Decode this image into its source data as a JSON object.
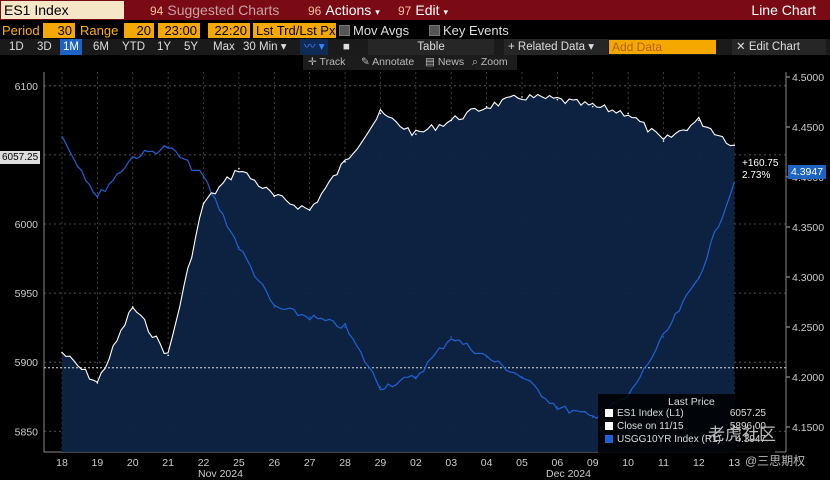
{
  "topbar": {
    "security": "ES1 Index",
    "suggested_num": "94",
    "suggested_label": "Suggested Charts",
    "actions_num": "96",
    "actions_label": "Actions",
    "edit_num": "97",
    "edit_label": "Edit",
    "view_label": "Line Chart"
  },
  "controls": {
    "period_label": "Period",
    "period_value": "30",
    "range_label": "Range",
    "range_value": "20",
    "time_start": "23:00",
    "time_end": "22:20",
    "lst_trd": "Lst Trd/Lst Px",
    "mov_avgs": "Mov Avgs",
    "key_events": "Key Events"
  },
  "tabs": [
    "1D",
    "3D",
    "1M",
    "6M",
    "YTD",
    "1Y",
    "5Y",
    "Max"
  ],
  "selected_tab": "1M",
  "interval": "30 Min",
  "table_label": "Table",
  "related_data": "+ Related Data",
  "add_data_placeholder": "Add Data",
  "edit_chart": "Edit Chart",
  "tools": {
    "track": "Track",
    "annotate": "Annotate",
    "news": "News",
    "zoom": "Zoom"
  },
  "colors": {
    "es1": "#ffffff",
    "usgg10yr": "#1f62d6",
    "accent": "#f5a800",
    "topbar": "#7a0a14"
  },
  "legend": {
    "header": "Last Price",
    "items": [
      {
        "label": "ES1 Index  (L1)",
        "value": "6057.25",
        "color": "#ffffff"
      },
      {
        "label": "Close on 11/15",
        "value": "5896.00",
        "color": "#ffffff"
      },
      {
        "label": "USGG10YR Index  (R1)",
        "value": "4.3947",
        "color": "#1f62d6"
      }
    ]
  },
  "current_left": "6057.25",
  "current_right": "4.3947",
  "change_abs": "+160.75",
  "change_pct": "2.73%",
  "months": {
    "nov": "Nov 2024",
    "dec": "Dec 2024"
  },
  "watermark": {
    "line1": "老虎社区",
    "line2": "@三思期权"
  },
  "chart_data": {
    "type": "line",
    "x_categories": [
      "18",
      "19",
      "20",
      "21",
      "22",
      "25",
      "26",
      "27",
      "28",
      "29",
      "02",
      "03",
      "04",
      "05",
      "06",
      "09",
      "10",
      "11",
      "12",
      "13"
    ],
    "left_axis": {
      "ticks": [
        5850,
        5900,
        5950,
        6000,
        6050,
        6100
      ],
      "range": [
        5835,
        6110
      ]
    },
    "right_axis": {
      "ticks": [
        4.15,
        4.2,
        4.25,
        4.3,
        4.35,
        4.4,
        4.45,
        4.5
      ],
      "range": [
        4.125,
        4.505
      ]
    },
    "reference_line": {
      "series": "ES1 Index",
      "value": 5896.0,
      "label": "Close on 11/15"
    },
    "series": [
      {
        "name": "ES1 Index",
        "axis": "left",
        "color": "#ffffff",
        "values": [
          5907,
          5885,
          5940,
          5905,
          6015,
          6040,
          6020,
          6010,
          6045,
          6080,
          6065,
          6075,
          6085,
          6092,
          6090,
          6085,
          6080,
          6060,
          6075,
          6057
        ]
      },
      {
        "name": "USGG10YR Index",
        "axis": "right",
        "color": "#1f62d6",
        "values": [
          4.44,
          4.38,
          4.42,
          4.43,
          4.4,
          4.33,
          4.27,
          4.26,
          4.25,
          4.19,
          4.2,
          4.24,
          4.22,
          4.2,
          4.17,
          4.16,
          4.18,
          4.24,
          4.3,
          4.3947
        ]
      }
    ]
  }
}
